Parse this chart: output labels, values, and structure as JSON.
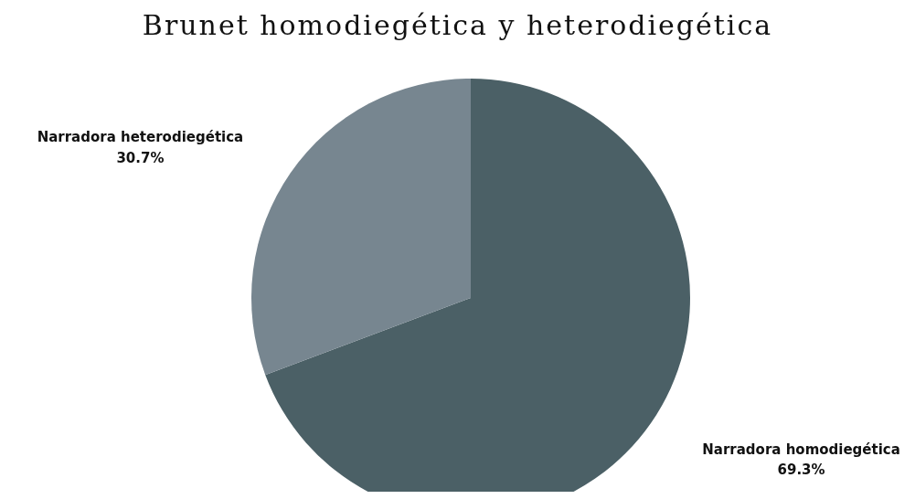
{
  "chart_data": {
    "type": "pie",
    "title": "Brunet homodiegética y heterodiegética",
    "categories": [
      "Narradora homodiegética",
      "Narradora heterodiegética"
    ],
    "values": [
      69.3,
      30.7
    ],
    "colors": [
      "#4b6066",
      "#778690"
    ],
    "value_labels": [
      "69.3%",
      "30.7%"
    ],
    "legend": false
  }
}
